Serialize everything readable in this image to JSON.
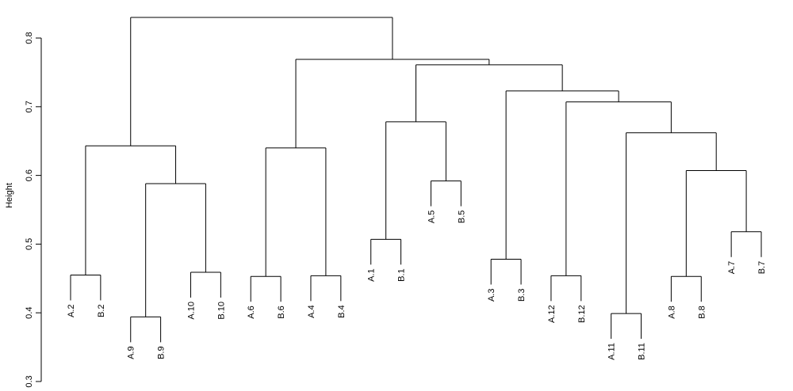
{
  "chart_data": {
    "type": "dendrogram",
    "title": "",
    "ylabel": "Height",
    "xlabel": "",
    "ylim": [
      0.3,
      0.83
    ],
    "yticks": [
      "0.3",
      "0.4",
      "0.5",
      "0.6",
      "0.7",
      "0.8"
    ],
    "leaves": [
      "A.2",
      "B.2",
      "A.9",
      "B.9",
      "A.10",
      "B.10",
      "A.6",
      "B.6",
      "A.4",
      "B.4",
      "A.1",
      "B.1",
      "A.5",
      "B.5",
      "A.3",
      "B.3",
      "A.12",
      "B.12",
      "A.11",
      "B.11",
      "A.8",
      "B.8",
      "A.7",
      "B.7"
    ],
    "merges": [
      {
        "left": "A.2",
        "right": "B.2",
        "height": 0.455
      },
      {
        "left": "A.9",
        "right": "B.9",
        "height": 0.394
      },
      {
        "left": "A.10",
        "right": "B.10",
        "height": 0.459
      },
      {
        "left": "A.6",
        "right": "B.6",
        "height": 0.453
      },
      {
        "left": "A.4",
        "right": "B.4",
        "height": 0.454
      },
      {
        "left": "A.1",
        "right": "B.1",
        "height": 0.507
      },
      {
        "left": "A.5",
        "right": "B.5",
        "height": 0.592
      },
      {
        "left": "A.3",
        "right": "B.3",
        "height": 0.478
      },
      {
        "left": "A.12",
        "right": "B.12",
        "height": 0.454
      },
      {
        "left": "A.11",
        "right": "B.11",
        "height": 0.399
      },
      {
        "left": "A.8",
        "right": "B.8",
        "height": 0.453
      },
      {
        "left": "A.7",
        "right": "B.7",
        "height": 0.518
      },
      {
        "left": 1,
        "right": 2,
        "height": 0.588
      },
      {
        "left": 0,
        "right": 12,
        "height": 0.643
      },
      {
        "left": 3,
        "right": 4,
        "height": 0.64
      },
      {
        "left": 5,
        "right": 6,
        "height": 0.678
      },
      {
        "left": 10,
        "right": 11,
        "height": 0.607
      },
      {
        "left": 9,
        "right": 16,
        "height": 0.662
      },
      {
        "left": 8,
        "right": 17,
        "height": 0.707
      },
      {
        "left": 7,
        "right": 18,
        "height": 0.723
      },
      {
        "left": 15,
        "right": 19,
        "height": 0.761
      },
      {
        "left": 14,
        "right": 20,
        "height": 0.769
      },
      {
        "left": 13,
        "right": 21,
        "height": 0.83
      }
    ]
  }
}
